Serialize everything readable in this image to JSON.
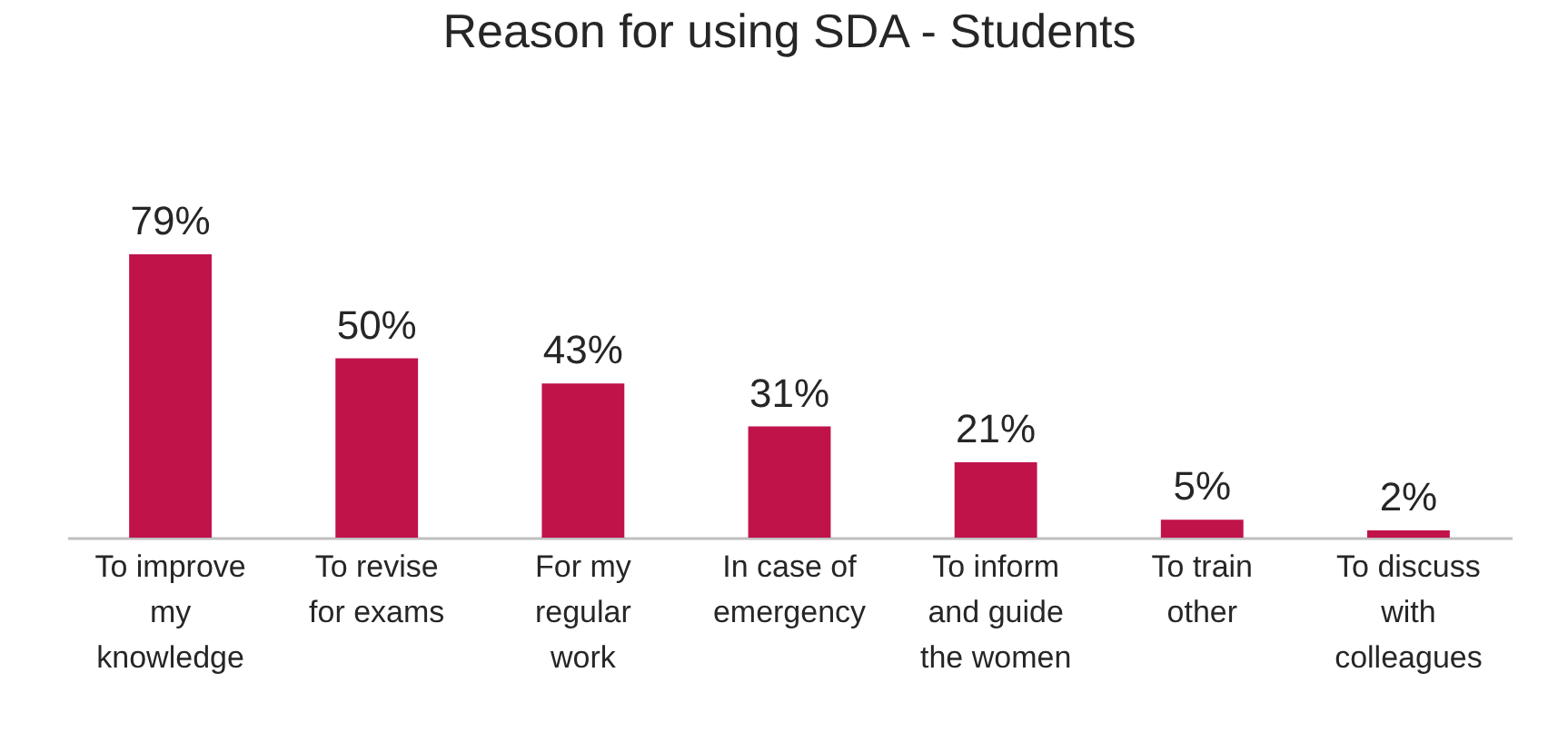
{
  "chart_data": {
    "type": "bar",
    "title": "Reason for using SDA - Students",
    "categories": [
      "To improve my knowledge",
      "To revise for exams",
      "For my regular work",
      "In case of emergency",
      "To inform and guide the women",
      "To train other",
      "To discuss with colleagues"
    ],
    "values": [
      79,
      50,
      43,
      31,
      21,
      5,
      2
    ],
    "value_labels": [
      "79%",
      "50%",
      "43%",
      "31%",
      "21%",
      "5%",
      "2%"
    ],
    "color": "#c0134a"
  }
}
